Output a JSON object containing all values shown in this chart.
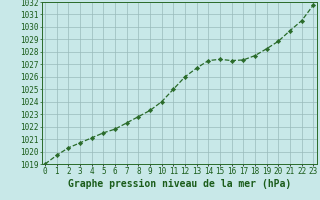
{
  "x": [
    0,
    1,
    2,
    3,
    4,
    5,
    6,
    7,
    8,
    9,
    10,
    11,
    12,
    13,
    14,
    15,
    16,
    17,
    18,
    19,
    20,
    21,
    22,
    23
  ],
  "y": [
    1019.0,
    1019.7,
    1020.3,
    1020.7,
    1021.1,
    1021.5,
    1021.8,
    1022.3,
    1022.8,
    1023.3,
    1024.0,
    1025.0,
    1026.0,
    1026.7,
    1027.3,
    1027.4,
    1027.3,
    1027.35,
    1027.7,
    1028.25,
    1028.85,
    1029.7,
    1030.5,
    1031.75
  ],
  "title": "Graphe pression niveau de la mer (hPa)",
  "ylim_min": 1019,
  "ylim_max": 1032,
  "ytick_min": 1019,
  "ytick_max": 1032,
  "ytick_step": 1,
  "bg_color": "#c8e8e8",
  "plot_bg_color": "#c8e8e8",
  "line_color": "#2a6b2a",
  "marker_color": "#2a6b2a",
  "grid_color": "#99bbbb",
  "text_color": "#1a5c1a",
  "spine_color": "#2a6b2a",
  "title_fontsize": 7,
  "tick_fontsize": 5.5
}
